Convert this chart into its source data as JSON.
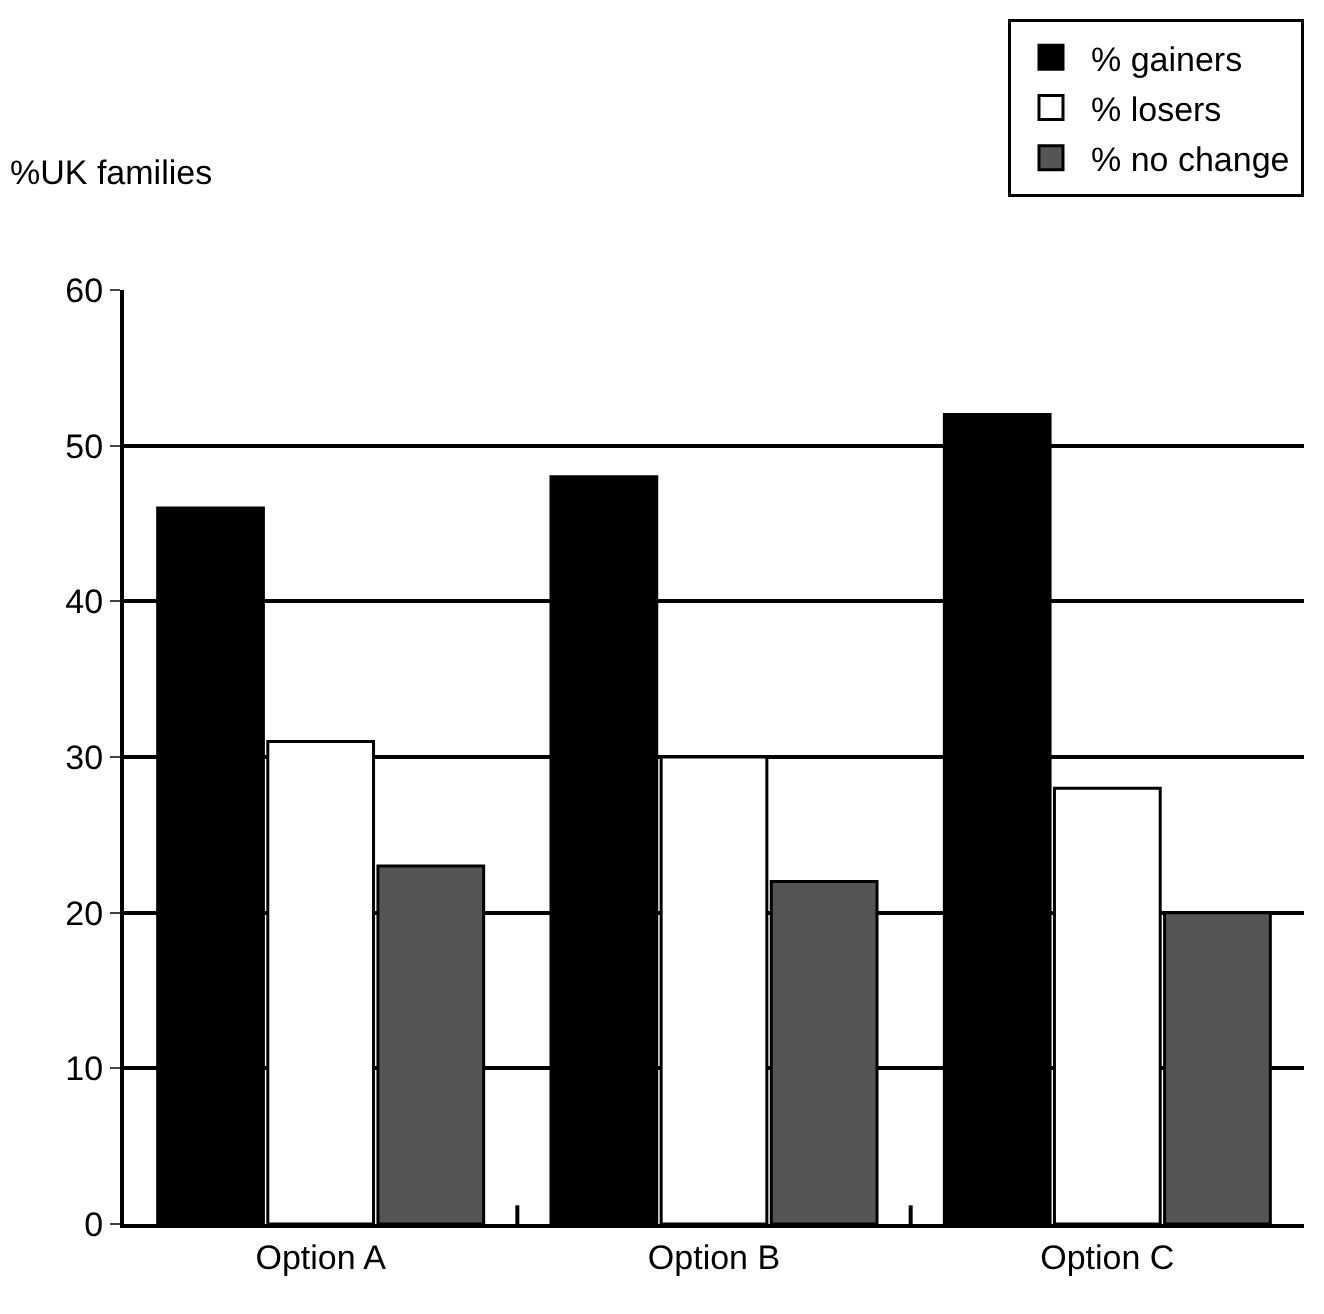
{
  "chart_data": {
    "type": "bar",
    "ylabel": "%UK families",
    "categories": [
      "Option A",
      "Option B",
      "Option C"
    ],
    "series": [
      {
        "name": "% gainers",
        "color": "#000000",
        "values": [
          46,
          48,
          52
        ]
      },
      {
        "name": "% losers",
        "color": "#ffffff",
        "values": [
          31,
          30,
          28
        ]
      },
      {
        "name": "% no change",
        "color": "#555555",
        "values": [
          23,
          22,
          20
        ]
      }
    ],
    "ylim": [
      0,
      60
    ],
    "yticks": [
      0,
      10,
      20,
      30,
      40,
      50,
      60
    ],
    "grid": "y",
    "legend": "top right"
  }
}
